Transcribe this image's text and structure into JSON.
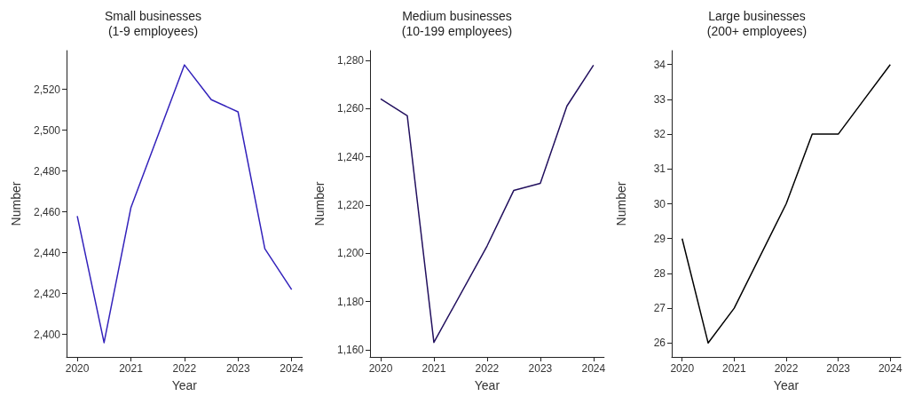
{
  "chart_data": [
    {
      "type": "line",
      "title": "Small businesses\n(1-9 employees)",
      "xlabel": "Year",
      "ylabel": "Number",
      "x": [
        2020,
        2020.5,
        2021,
        2022,
        2022.5,
        2023,
        2023.5,
        2024
      ],
      "series": [
        {
          "color": "#3322bb",
          "values": [
            2458,
            2396,
            2462,
            2532,
            2515,
            2509,
            2442,
            2422
          ]
        }
      ],
      "xlim": [
        2019.8,
        2024.2
      ],
      "xticks": [
        2020,
        2021,
        2022,
        2023,
        2024
      ],
      "ylim": [
        2389,
        2539
      ],
      "yticks": [
        {
          "value": 2400,
          "label": "2,400"
        },
        {
          "value": 2420,
          "label": "2,420"
        },
        {
          "value": 2440,
          "label": "2,440"
        },
        {
          "value": 2460,
          "label": "2,460"
        },
        {
          "value": 2480,
          "label": "2,480"
        },
        {
          "value": 2500,
          "label": "2,500"
        },
        {
          "value": 2520,
          "label": "2,520"
        }
      ],
      "grid": false,
      "marker": "none",
      "line_style": "solid"
    },
    {
      "type": "line",
      "title": "Medium businesses\n(10-199 employees)",
      "xlabel": "Year",
      "ylabel": "Number",
      "x": [
        2020,
        2020.5,
        2021,
        2022,
        2022.5,
        2023,
        2023.5,
        2024
      ],
      "series": [
        {
          "color": "#22105e",
          "values": [
            1264,
            1257,
            1163,
            1203,
            1226,
            1229,
            1261,
            1278
          ]
        }
      ],
      "xlim": [
        2019.8,
        2024.2
      ],
      "xticks": [
        2020,
        2021,
        2022,
        2023,
        2024
      ],
      "ylim": [
        1157,
        1284
      ],
      "yticks": [
        {
          "value": 1160,
          "label": "1,160"
        },
        {
          "value": 1180,
          "label": "1,180"
        },
        {
          "value": 1200,
          "label": "1,200"
        },
        {
          "value": 1220,
          "label": "1,220"
        },
        {
          "value": 1240,
          "label": "1,240"
        },
        {
          "value": 1260,
          "label": "1,260"
        },
        {
          "value": 1280,
          "label": "1,280"
        }
      ],
      "grid": false,
      "marker": "none",
      "line_style": "solid"
    },
    {
      "type": "line",
      "title": "Large businesses\n(200+ employees)",
      "xlabel": "Year",
      "ylabel": "Number",
      "x": [
        2020,
        2020.5,
        2021,
        2022,
        2022.5,
        2023,
        2023.5,
        2024
      ],
      "series": [
        {
          "color": "#000000",
          "values": [
            29,
            26,
            27,
            30,
            32,
            32,
            33,
            34
          ]
        }
      ],
      "xlim": [
        2019.8,
        2024.2
      ],
      "xticks": [
        2020,
        2021,
        2022,
        2023,
        2024
      ],
      "ylim": [
        25.6,
        34.4
      ],
      "yticks": [
        26,
        27,
        28,
        29,
        30,
        31,
        32,
        33,
        34
      ],
      "grid": false,
      "marker": "none",
      "line_style": "solid"
    }
  ]
}
